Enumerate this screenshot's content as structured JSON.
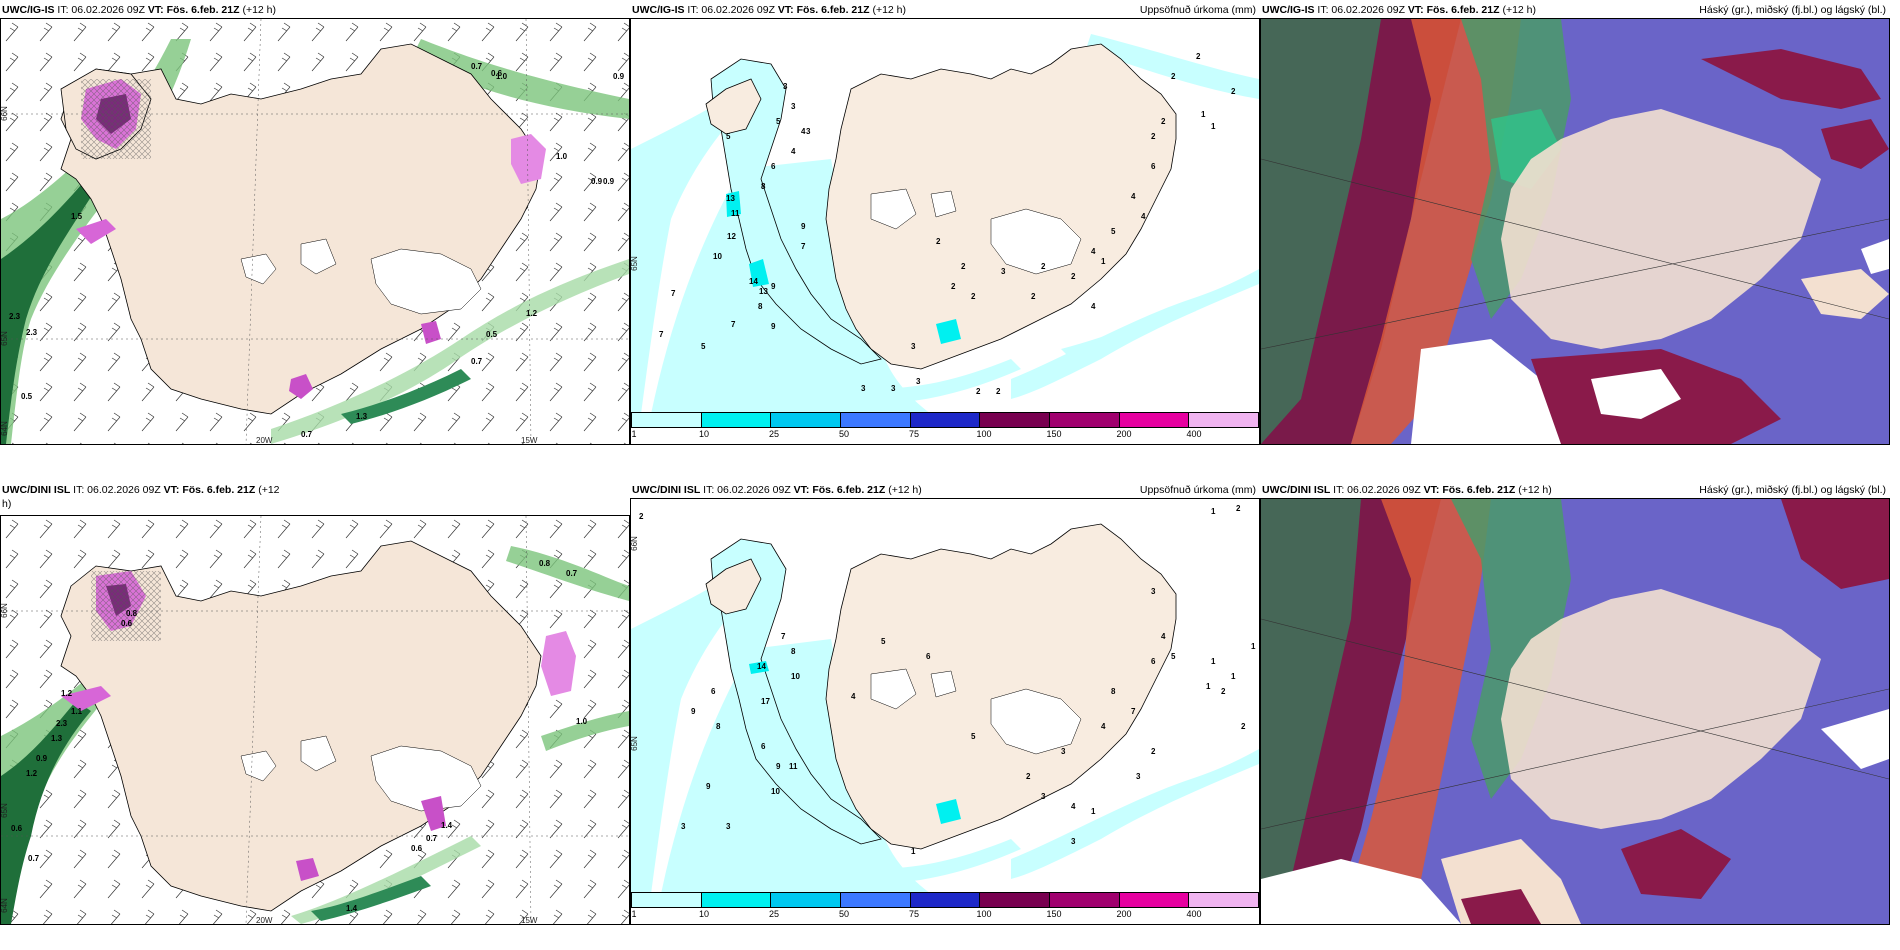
{
  "panels": [
    {
      "id": "p1",
      "model": "UWC/IG-IS",
      "it": "IT: 06.02.2026 09Z",
      "vt": "VT: Fös. 6.feb. 21Z",
      "lead": "(+12 h)",
      "right_title": "",
      "lon_labels": [
        "20W",
        "15W"
      ],
      "lat_labels": [
        "66N",
        "65N",
        "64N"
      ]
    },
    {
      "id": "p2",
      "model": "UWC/IG-IS",
      "it": "IT: 06.02.2026 09Z",
      "vt": "VT: Fös. 6.feb. 21Z",
      "lead": "(+12 h)",
      "right_title": "Uppsöfnuð úrkoma (mm)",
      "lon_labels": [],
      "lat_labels": [
        "65N"
      ]
    },
    {
      "id": "p3",
      "model": "UWC/IG-IS",
      "it": "IT: 06.02.2026 09Z",
      "vt": "VT: Fös. 6.feb. 21Z",
      "lead": "(+12 h)",
      "right_title": "Háský (gr.), miðský (fj.bl.) og lágský (bl.)",
      "lon_labels": [],
      "lat_labels": []
    },
    {
      "id": "p4",
      "model": "UWC/DINI ISL",
      "it": "IT: 06.02.2026 09Z",
      "vt": "VT: Fös. 6.feb. 21Z",
      "lead": "(+12",
      "lead2": "h)",
      "right_title": "",
      "lon_labels": [
        "20W",
        "15W"
      ],
      "lat_labels": [
        "66N",
        "65N",
        "64N"
      ]
    },
    {
      "id": "p5",
      "model": "UWC/DINI ISL",
      "it": "IT: 06.02.2026 09Z",
      "vt": "VT: Fös. 6.feb. 21Z",
      "lead": "(+12 h)",
      "right_title": "Uppsöfnuð úrkoma (mm)",
      "lon_labels": [],
      "lat_labels": [
        "66N",
        "65N"
      ]
    },
    {
      "id": "p6",
      "model": "UWC/DINI ISL",
      "it": "IT: 06.02.2026 09Z",
      "vt": "VT: Fös. 6.feb. 21Z",
      "lead": "(+12 h)",
      "right_title": "Háský (gr.), miðský (fj.bl.) og lágský (bl.)",
      "lon_labels": [],
      "lat_labels": []
    }
  ],
  "legend": {
    "ticks": [
      "1",
      "10",
      "25",
      "50",
      "75",
      "100",
      "150",
      "200",
      "400"
    ],
    "colors": [
      "#c8ffff",
      "#00f0f0",
      "#00c8f0",
      "#3c78ff",
      "#1e28c8",
      "#780050",
      "#a0006e",
      "#e600a0",
      "#f0b4f0"
    ]
  },
  "p1_values": [
    "0.7",
    "0.6",
    "0.9",
    "1.5",
    "2.3",
    "2.3",
    "0.5",
    "0.5",
    "0.7",
    "1.2",
    "1.3",
    "0.7",
    "1.0",
    "0.9",
    "0.9",
    "1.0"
  ],
  "p4_values": [
    "0.8",
    "0.7",
    "0.6",
    "1.2",
    "1.1",
    "2.3",
    "1.2",
    "0.9",
    "0.6",
    "0.7",
    "0.6",
    "0.7",
    "1.4",
    "1.4",
    "1.3",
    "1.0",
    "0.8"
  ],
  "p2_values": [
    "3",
    "3",
    "5",
    "4",
    "4",
    "6",
    "8",
    "13",
    "11",
    "12",
    "10",
    "7",
    "7",
    "9",
    "8",
    "9",
    "7",
    "9",
    "5",
    "7",
    "3",
    "3",
    "2",
    "2",
    "2",
    "2",
    "2",
    "3",
    "6",
    "4",
    "4",
    "5",
    "2",
    "2",
    "4",
    "1",
    "2",
    "2",
    "3",
    "3",
    "3",
    "2",
    "2",
    "1",
    "5",
    "2",
    "2",
    "1",
    "2",
    "4",
    "14",
    "13"
  ],
  "p5_values": [
    "2",
    "1",
    "2",
    "3",
    "4",
    "5",
    "6",
    "7",
    "8",
    "9",
    "10",
    "14",
    "17",
    "9",
    "11",
    "8",
    "6",
    "9",
    "6",
    "10",
    "3",
    "3",
    "5",
    "6",
    "8",
    "7",
    "4",
    "3",
    "2",
    "1",
    "1",
    "2",
    "3",
    "4",
    "5",
    "4",
    "1",
    "3",
    "2",
    "3",
    "1",
    "1",
    "1",
    "2"
  ]
}
